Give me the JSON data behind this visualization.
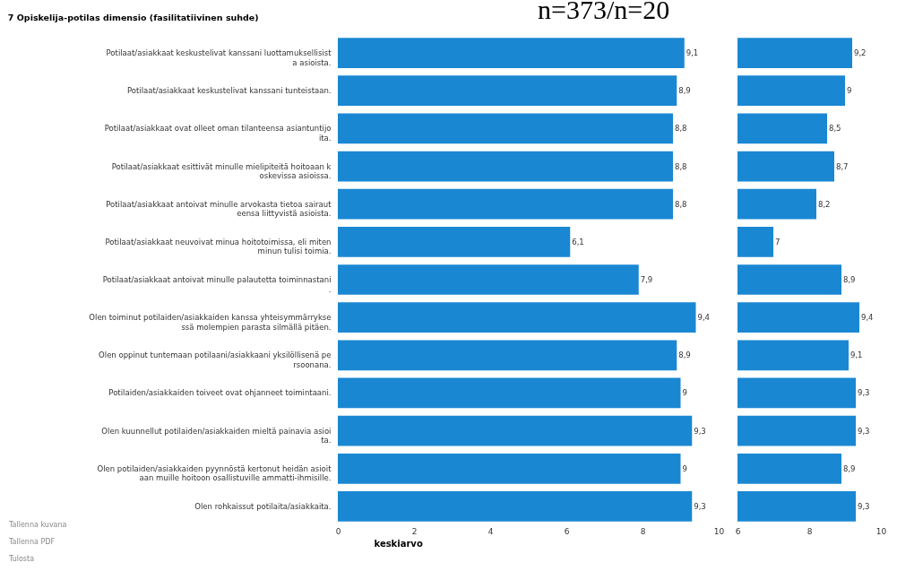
{
  "chart_data": [
    {
      "type": "bar",
      "orientation": "horizontal",
      "title": "7 Opiskelija-potilas dimensio (fasilitatiivinen suhde)",
      "xlabel": "keskiarvo",
      "annotations": [
        "n=373/n=20",
        "Tallenna kuvana",
        "Tallenna PDF",
        "Tulosta"
      ],
      "categories": [
        "Potilaat/asiakkaat keskustelivat kanssani luottamuksellisista asioista.",
        "Potilaat/asiakkaat keskustelivat kanssani tunteistaan.",
        "Potilaat/asiakkaat ovat olleet oman tilanteensa asiantuntijoita.",
        "Potilaat/asiakkaat esittivät minulle mielipiteitä hoitoaan koskevissa asioissa.",
        "Potilaat/asiakkaat antoivat minulle arvokasta tietoa sairauteensa liittyvistä asioista.",
        "Potilaat/asiakkaat neuvoivat minua hoitotoimissa, eli miten minun tulisi toimia.",
        "Potilaat/asiakkaat antoivat minulle palautetta toiminnastani.",
        "Olen toiminut potilaiden/asiakkaiden kanssa yhteisymmärryksessä molempien parasta silmällä pitäen.",
        "Olen oppinut tuntemaan potilaani/asiakkaani yksilöllisenä persoonana.",
        "Potilaiden/asiakkaiden toiveet ovat ohjanneet toimintaani.",
        "Olen kuunnellut potilaiden/asiakkaiden mieltä painavia asioita.",
        "Olen potilaiden/asiakkaiden pyynnöstä kertonut heidän asioitaan muille hoitoon osallistuville ammatti-ihmisille.",
        "Olen rohkaissut potilaita/asiakkaita."
      ],
      "values": [
        9.1,
        8.9,
        8.8,
        8.8,
        8.8,
        6.1,
        7.9,
        9.4,
        8.9,
        9,
        9.3,
        9,
        9.3
      ],
      "value_labels": [
        "9,1",
        "8,9",
        "8,8",
        "8,8",
        "8,8",
        "6,1",
        "7,9",
        "9,4",
        "8,9",
        "9",
        "9,3",
        "9",
        "9,3"
      ],
      "color": "#1a87d3",
      "xlim": [
        0,
        10
      ],
      "xticks": [
        0,
        2,
        4,
        6,
        8,
        10
      ]
    },
    {
      "type": "bar",
      "orientation": "horizontal",
      "tick_labels": "x",
      "categories": [
        "Potilaat/asiakkaat keskustelivat kanssani luottamuksellisista asioista.",
        "Potilaat/asiakkaat keskustelivat kanssani tunteistaan.",
        "Potilaat/asiakkaat ovat olleet oman tilanteensa asiantuntijoita.",
        "Potilaat/asiakkaat esittivät minulle mielipiteitä hoitoaan koskevissa asioissa.",
        "Potilaat/asiakkaat antoivat minulle arvokasta tietoa sairauteensa liittyvistä asioista.",
        "Potilaat/asiakkaat neuvoivat minua hoitotoimissa, eli miten minun tulisi toimia.",
        "Potilaat/asiakkaat antoivat minulle palautetta toiminnastani.",
        "Olen toiminut potilaiden/asiakkaiden kanssa yhteisymmärryksessä molempien parasta silmällä pitäen.",
        "Olen oppinut tuntemaan potilaani/asiakkaani yksilöllisenä persoonana.",
        "Potilaiden/asiakkaiden toiveet ovat ohjanneet toimintaani.",
        "Olen kuunnellut potilaiden/asiakkaiden mieltä painavia asioita.",
        "Olen potilaiden/asiakkaiden pyynnöstä kertonut heidän asioitaan muille hoitoon osallistuville ammatti-ihmisille.",
        "Olen rohkaissut potilaita/asiakkaita."
      ],
      "values": [
        9.2,
        9,
        8.5,
        8.7,
        8.2,
        7,
        8.9,
        9.4,
        9.1,
        9.3,
        9.3,
        8.9,
        9.3
      ],
      "value_labels": [
        "9,2",
        "9",
        "8,5",
        "8,7",
        "8,2",
        "7",
        "8,9",
        "9,4",
        "9,1",
        "9,3",
        "9,3",
        "8,9",
        "9,3"
      ],
      "color": "#1a87d3",
      "xlim": [
        6,
        10
      ],
      "xticks": [
        6,
        8,
        10
      ]
    }
  ]
}
